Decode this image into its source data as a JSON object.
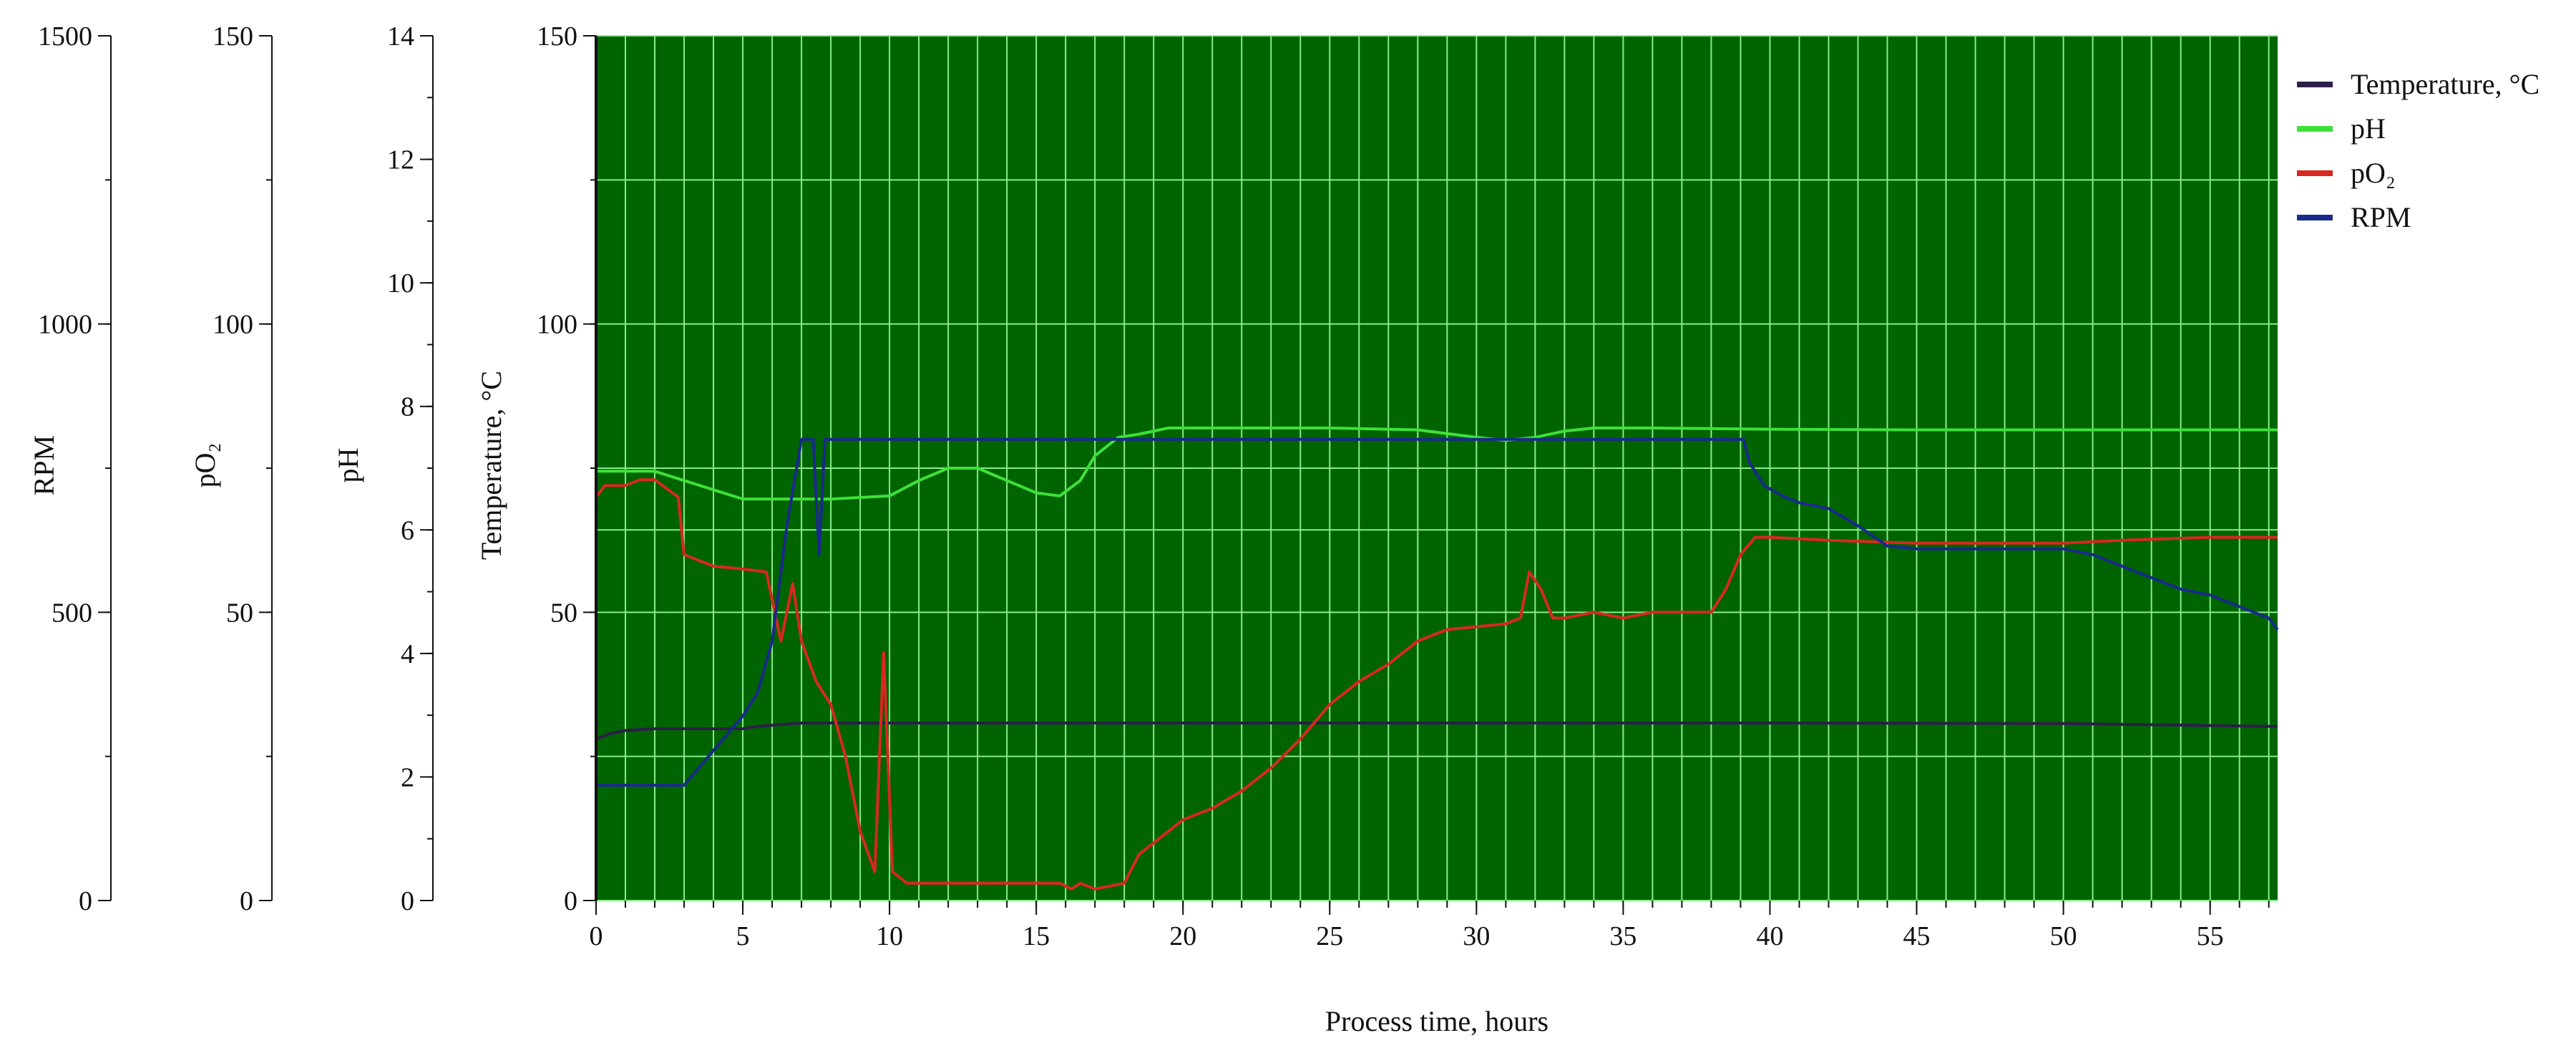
{
  "chart_data": {
    "type": "line",
    "xlabel": "Process time, hours",
    "xlim": [
      0,
      57.3
    ],
    "x_ticks": [
      "0",
      "5",
      "10",
      "15",
      "20",
      "25",
      "30",
      "35",
      "40",
      "45",
      "50",
      "55"
    ],
    "grid": true,
    "legend_position": "top-right",
    "axes": {
      "temperature": {
        "label": "Temperature, °C",
        "range": [
          0,
          150
        ],
        "ticks": [
          "0",
          "50",
          "100",
          "150"
        ]
      },
      "ph": {
        "label": "pH",
        "range": [
          0,
          14
        ],
        "ticks": [
          "0",
          "2",
          "4",
          "6",
          "8",
          "10",
          "12",
          "14"
        ]
      },
      "po2": {
        "label": "pO₂",
        "range": [
          0,
          150
        ],
        "ticks": [
          "0",
          "50",
          "100",
          "150"
        ]
      },
      "rpm": {
        "label": "RPM",
        "range": [
          0,
          1500
        ],
        "ticks": [
          "0",
          "500",
          "1000",
          "1500"
        ]
      }
    },
    "series": [
      {
        "name": "Temperature, °C",
        "axis": "temperature",
        "color": "#2d1f4a",
        "points": [
          [
            0,
            28
          ],
          [
            0.5,
            29
          ],
          [
            1,
            29.5
          ],
          [
            2,
            29.8
          ],
          [
            5,
            29.8
          ],
          [
            5.5,
            30.2
          ],
          [
            7,
            30.8
          ],
          [
            10,
            30.8
          ],
          [
            20,
            30.8
          ],
          [
            30,
            30.8
          ],
          [
            40,
            30.8
          ],
          [
            50,
            30.7
          ],
          [
            57.3,
            30.2
          ]
        ]
      },
      {
        "name": "pH",
        "axis": "ph",
        "color": "#3fe03a",
        "points": [
          [
            0,
            6.95
          ],
          [
            2,
            6.95
          ],
          [
            3,
            6.8
          ],
          [
            4,
            6.65
          ],
          [
            5,
            6.5
          ],
          [
            6,
            6.5
          ],
          [
            8,
            6.5
          ],
          [
            10,
            6.55
          ],
          [
            11,
            6.8
          ],
          [
            12,
            7.0
          ],
          [
            13,
            7.0
          ],
          [
            14,
            6.8
          ],
          [
            15,
            6.6
          ],
          [
            15.8,
            6.55
          ],
          [
            16.5,
            6.8
          ],
          [
            17,
            7.2
          ],
          [
            17.8,
            7.5
          ],
          [
            18.5,
            7.55
          ],
          [
            19.5,
            7.65
          ],
          [
            22,
            7.65
          ],
          [
            25,
            7.65
          ],
          [
            28,
            7.62
          ],
          [
            30,
            7.5
          ],
          [
            31,
            7.45
          ],
          [
            32,
            7.5
          ],
          [
            33,
            7.6
          ],
          [
            34,
            7.65
          ],
          [
            36,
            7.65
          ],
          [
            40,
            7.63
          ],
          [
            45,
            7.62
          ],
          [
            50,
            7.62
          ],
          [
            55,
            7.62
          ],
          [
            57.3,
            7.62
          ]
        ]
      },
      {
        "name": "pO₂",
        "axis": "po2",
        "color": "#d8281f",
        "points": [
          [
            0,
            70
          ],
          [
            0.3,
            72
          ],
          [
            1,
            72
          ],
          [
            1.5,
            73
          ],
          [
            2,
            73
          ],
          [
            2.8,
            70
          ],
          [
            3,
            60
          ],
          [
            4,
            58
          ],
          [
            5,
            57.5
          ],
          [
            5.8,
            57
          ],
          [
            6.3,
            45
          ],
          [
            6.7,
            55
          ],
          [
            7,
            45
          ],
          [
            7.5,
            38
          ],
          [
            8,
            34
          ],
          [
            8.5,
            25
          ],
          [
            9,
            12
          ],
          [
            9.5,
            5
          ],
          [
            9.8,
            43
          ],
          [
            10.1,
            5
          ],
          [
            10.6,
            3
          ],
          [
            12,
            3
          ],
          [
            15,
            3
          ],
          [
            15.8,
            3
          ],
          [
            16.2,
            2
          ],
          [
            16.5,
            3
          ],
          [
            17,
            2
          ],
          [
            17.5,
            2.5
          ],
          [
            18,
            3
          ],
          [
            18.5,
            8
          ],
          [
            19,
            10
          ],
          [
            20,
            14
          ],
          [
            21,
            16
          ],
          [
            22,
            19
          ],
          [
            23,
            23
          ],
          [
            24,
            28
          ],
          [
            25,
            34
          ],
          [
            26,
            38
          ],
          [
            27,
            41
          ],
          [
            28,
            45
          ],
          [
            29,
            47
          ],
          [
            30,
            47.5
          ],
          [
            31,
            48
          ],
          [
            31.5,
            49
          ],
          [
            31.8,
            57
          ],
          [
            32.2,
            54
          ],
          [
            32.6,
            49
          ],
          [
            33,
            49
          ],
          [
            34,
            50
          ],
          [
            35,
            49
          ],
          [
            36,
            50
          ],
          [
            37,
            50
          ],
          [
            38,
            50
          ],
          [
            38.5,
            54
          ],
          [
            39,
            60
          ],
          [
            39.5,
            63
          ],
          [
            40,
            63
          ],
          [
            42,
            62.5
          ],
          [
            45,
            62
          ],
          [
            50,
            62
          ],
          [
            52,
            62.5
          ],
          [
            55,
            63
          ],
          [
            57.3,
            63
          ]
        ]
      },
      {
        "name": "RPM",
        "axis": "rpm",
        "color": "#1a2a8a",
        "points": [
          [
            0,
            200
          ],
          [
            1,
            200
          ],
          [
            3,
            200
          ],
          [
            3.5,
            230
          ],
          [
            4,
            260
          ],
          [
            4.5,
            290
          ],
          [
            5,
            320
          ],
          [
            5.5,
            360
          ],
          [
            6,
            450
          ],
          [
            6.5,
            650
          ],
          [
            7,
            800
          ],
          [
            7.4,
            800
          ],
          [
            7.6,
            600
          ],
          [
            7.8,
            800
          ],
          [
            10,
            800
          ],
          [
            20,
            800
          ],
          [
            26,
            800
          ],
          [
            30,
            800
          ],
          [
            34,
            800
          ],
          [
            38,
            800
          ],
          [
            39.1,
            800
          ],
          [
            39.3,
            760
          ],
          [
            39.8,
            720
          ],
          [
            40.5,
            700
          ],
          [
            41,
            690
          ],
          [
            42,
            680
          ],
          [
            43,
            650
          ],
          [
            44,
            615
          ],
          [
            45,
            610
          ],
          [
            48,
            610
          ],
          [
            50,
            610
          ],
          [
            51,
            600
          ],
          [
            52,
            580
          ],
          [
            53,
            560
          ],
          [
            54,
            540
          ],
          [
            55,
            530
          ],
          [
            56,
            510
          ],
          [
            57,
            490
          ],
          [
            57.3,
            470
          ]
        ]
      }
    ]
  }
}
